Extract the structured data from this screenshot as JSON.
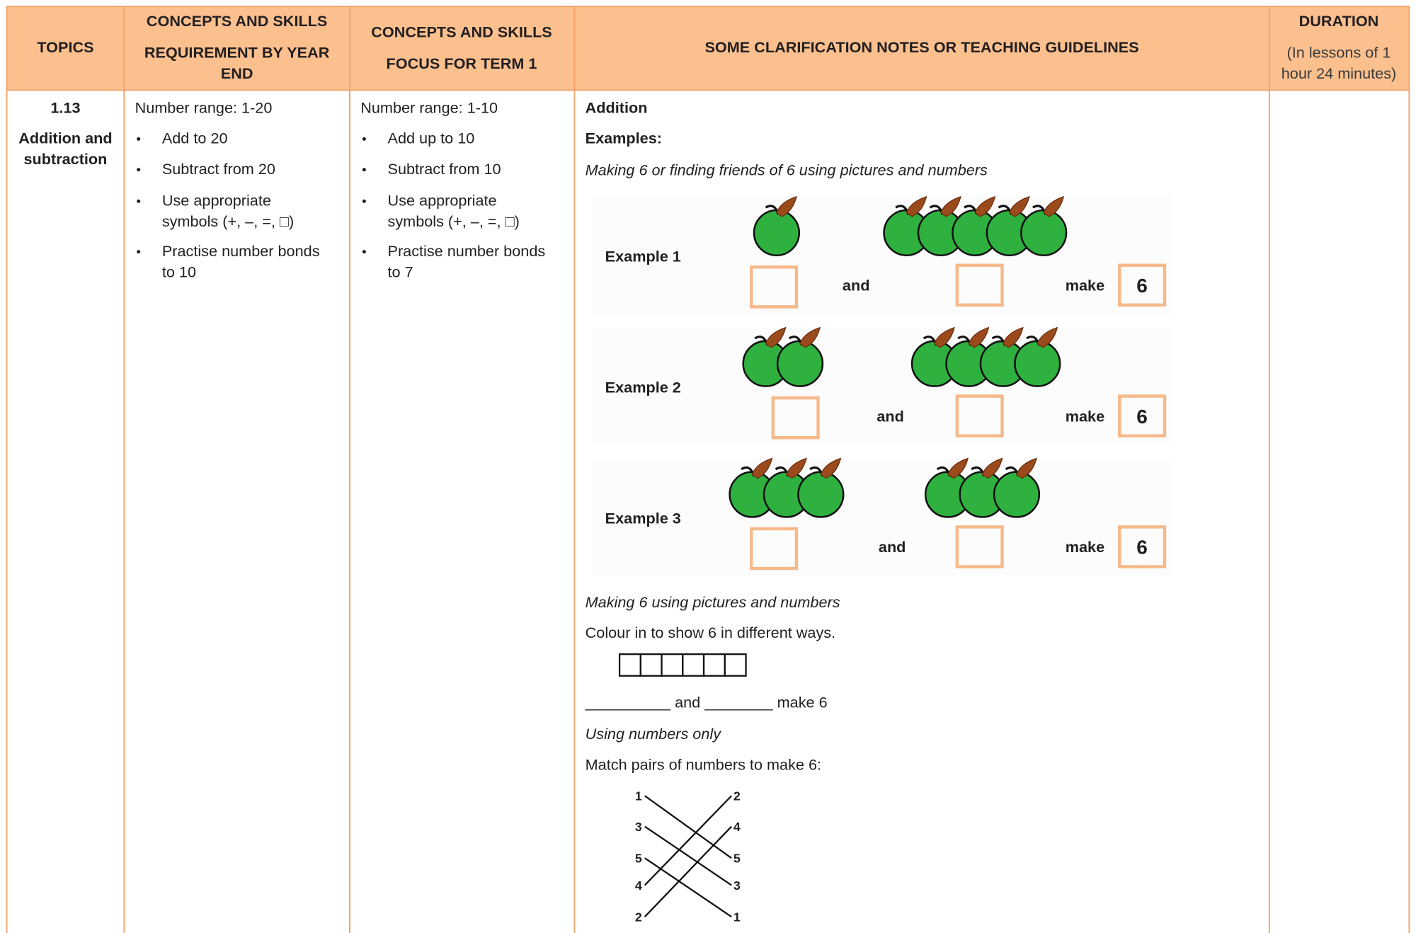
{
  "header": {
    "columns": [
      {
        "lines": [
          "TOPICS"
        ]
      },
      {
        "lines": [
          "CONCEPTS AND SKILLS",
          "REQUIREMENT BY YEAR",
          "END"
        ]
      },
      {
        "lines": [
          "CONCEPTS AND SKILLS",
          "FOCUS FOR TERM 1"
        ]
      },
      {
        "lines": [
          "SOME CLARIFICATION NOTES OR TEACHING GUIDELINES"
        ]
      },
      {
        "lines": [
          "DURATION",
          "(In lessons of 1",
          "hour 24 minutes)"
        ]
      }
    ]
  },
  "topic": {
    "number": "1.13",
    "title_lines": [
      "Addition and",
      "subtraction"
    ]
  },
  "year_end": {
    "range": "Number range: 1-20",
    "bullets": [
      [
        "Add to 20"
      ],
      [
        "Subtract from 20"
      ],
      [
        "Use appropriate",
        "symbols (+, –, =, □)"
      ],
      [
        "Practise number bonds",
        "to 10"
      ]
    ]
  },
  "term1": {
    "range": "Number range: 1-10",
    "bullets": [
      [
        "Add up to 10"
      ],
      [
        "Subtract from 10"
      ],
      [
        "Use appropriate",
        "symbols (+, –, =, □)"
      ],
      [
        "Practise number bonds",
        "to 7"
      ]
    ]
  },
  "notes": {
    "heading": "Addition",
    "examples_label": "Examples:",
    "intro": "Making 6 or finding friends of 6 using pictures and numbers",
    "examples": [
      {
        "label": "Example 1",
        "left_apples": 1,
        "right_apples": 5,
        "and": "and",
        "make": "make",
        "total": "6"
      },
      {
        "label": "Example 2",
        "left_apples": 2,
        "right_apples": 4,
        "and": "and",
        "make": "make",
        "total": "6"
      },
      {
        "label": "Example 3",
        "left_apples": 3,
        "right_apples": 3,
        "and": "and",
        "make": "make",
        "total": "6"
      }
    ],
    "section2_title": "Making 6 using pictures and numbers",
    "instruction": "Colour in to show 6 in different ways.",
    "grid_cells": 6,
    "fill_line": "__________ and ________ make 6",
    "section3_title": "Using numbers only",
    "match_instruction": "Match pairs of numbers to make 6:",
    "match_left": [
      "1",
      "3",
      "5",
      "4",
      "2"
    ],
    "match_right": [
      "2",
      "4",
      "5",
      "3",
      "1"
    ],
    "match_pairs": [
      [
        0,
        2
      ],
      [
        1,
        3
      ],
      [
        2,
        4
      ],
      [
        3,
        0
      ],
      [
        4,
        1
      ]
    ]
  }
}
